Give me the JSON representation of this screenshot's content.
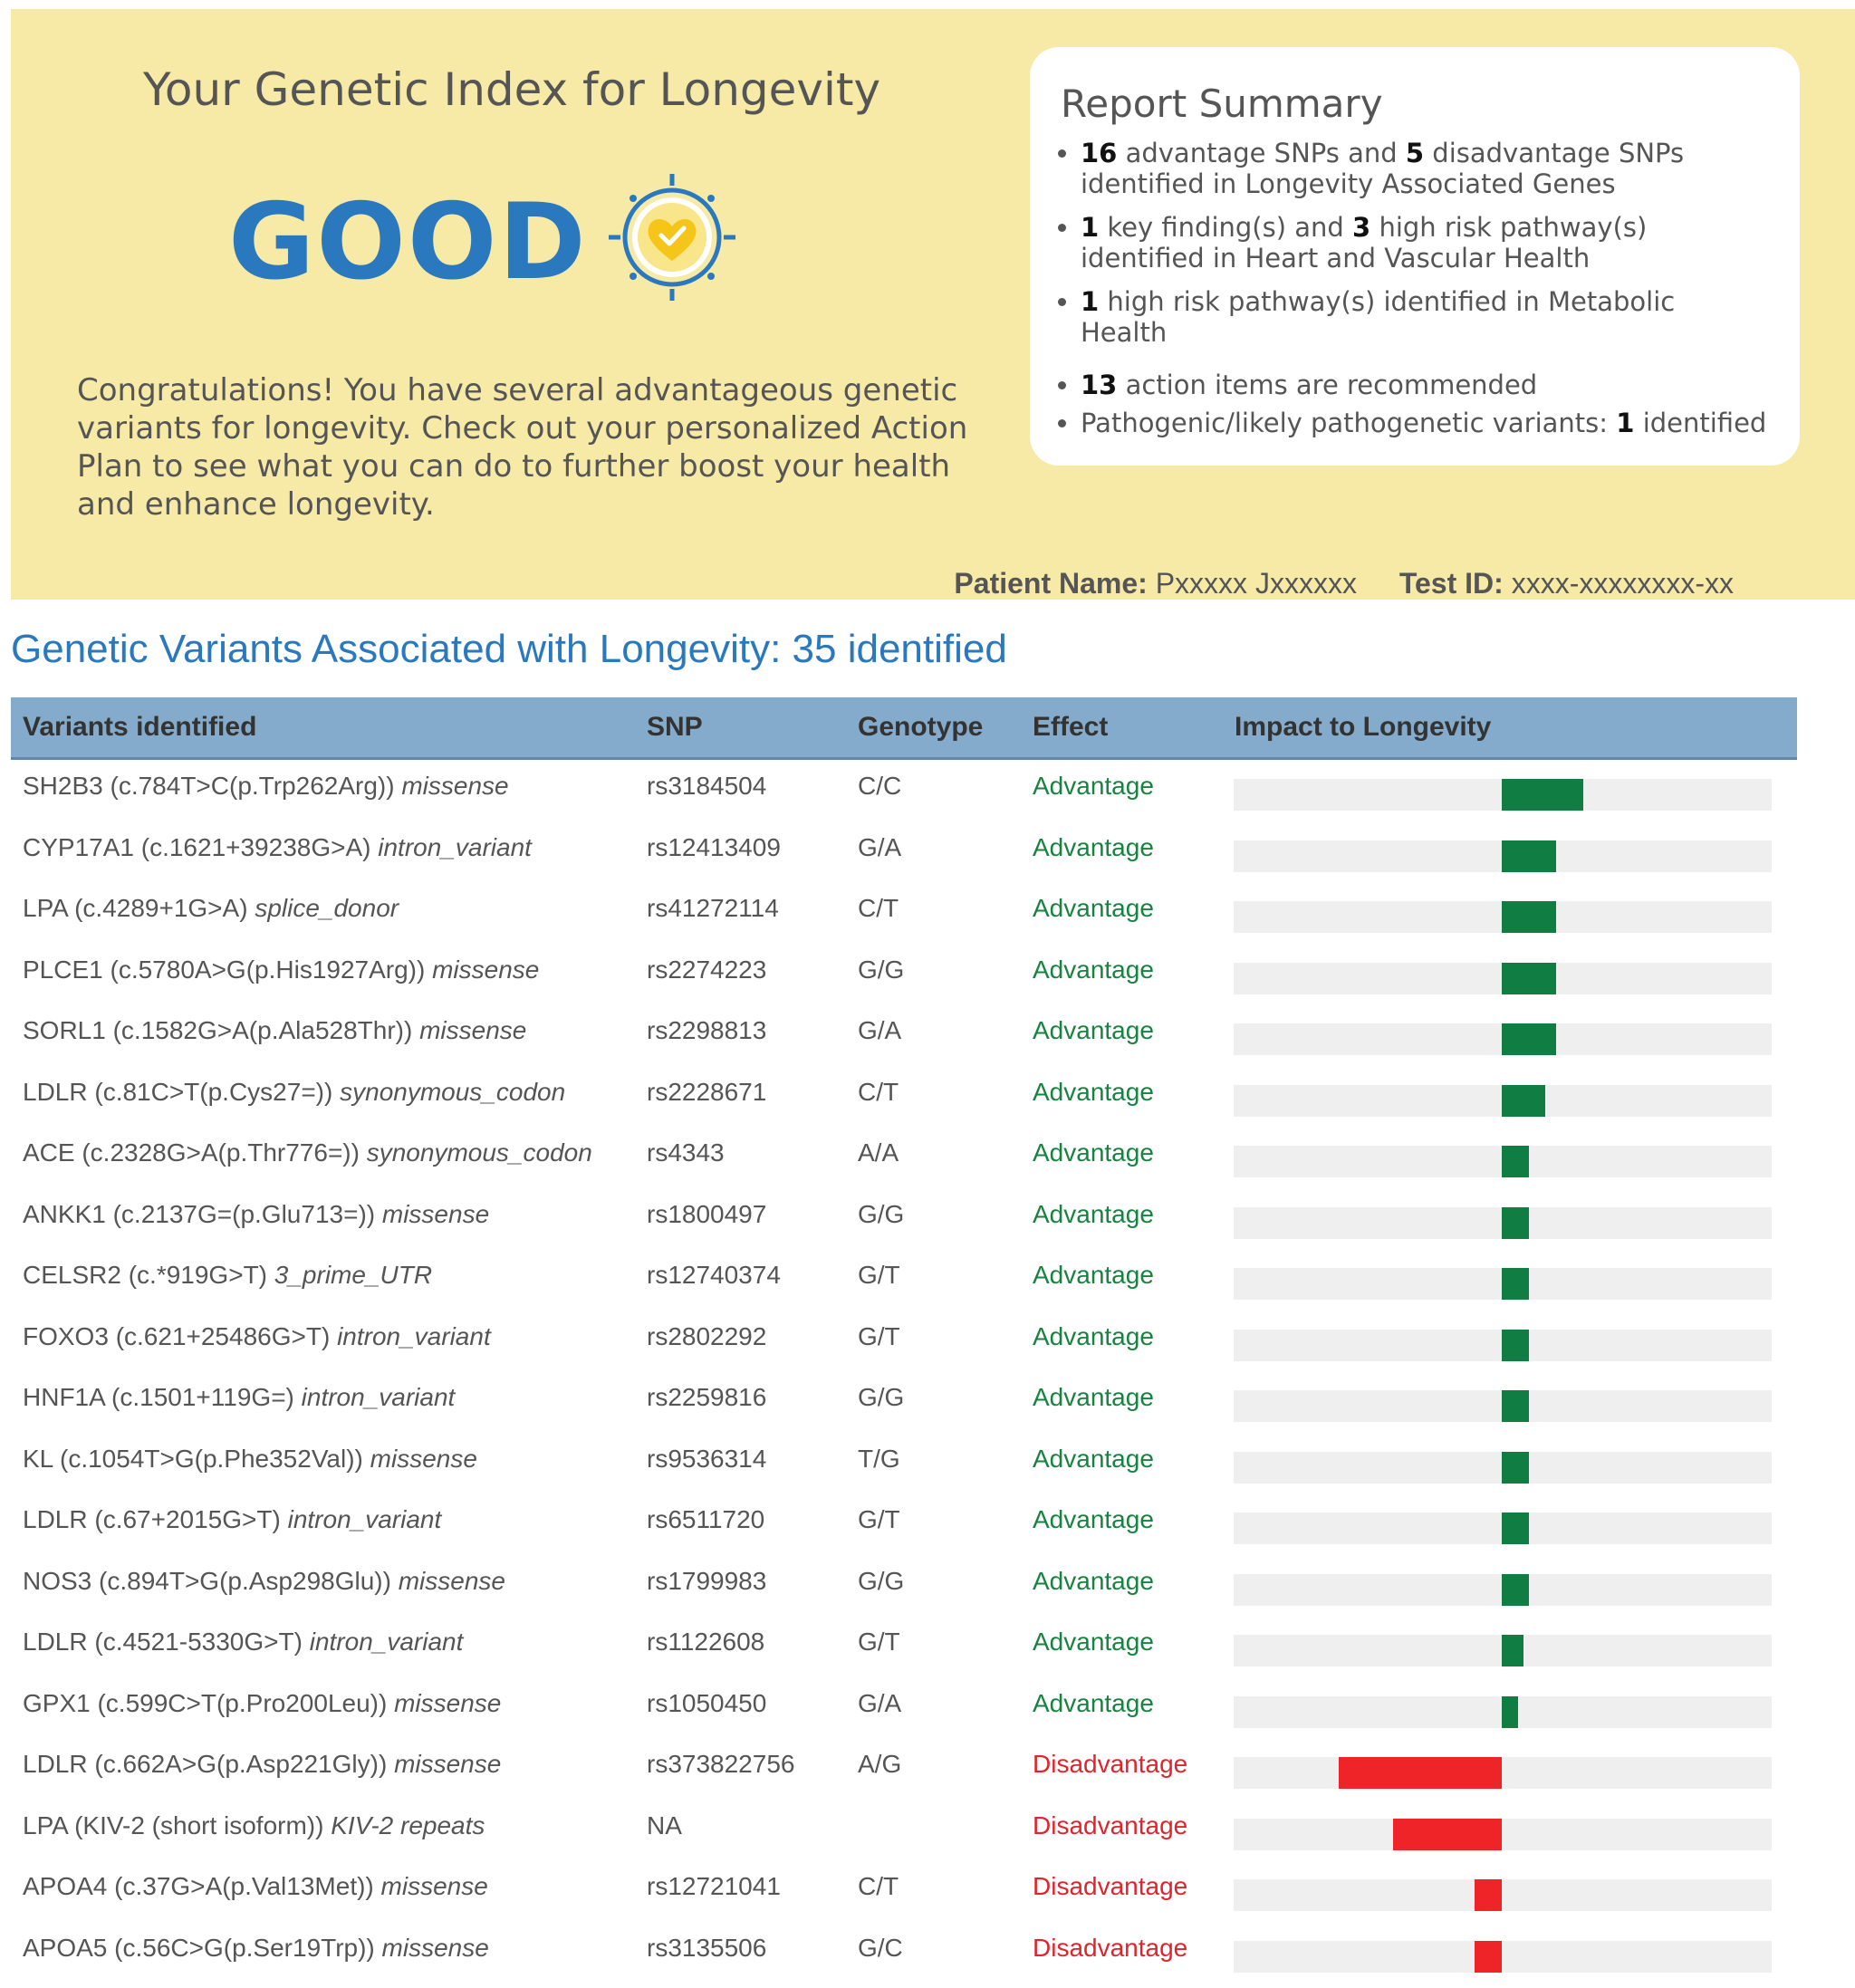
{
  "header": {
    "title": "Your Genetic Index for Longevity",
    "rating": "GOOD",
    "badge_icon": "heart-check-icon",
    "message": "Congratulations! You have several advantageous genetic variants for longevity. Check out your personalized Action Plan to see what you can do to further boost your health and enhance longevity."
  },
  "summary": {
    "title": "Report Summary",
    "items": [
      {
        "count": "16",
        "mid": "advantage SNPs and",
        "count2": "5",
        "text": "disadvantage SNPs identified in Longevity Associated Genes"
      },
      {
        "count": "1",
        "mid": "key finding(s) and",
        "count2": "3",
        "text": "high risk pathway(s) identified in Heart and Vascular Health"
      },
      {
        "count": "1",
        "text": "high risk pathway(s) identified in Metabolic Health"
      },
      {
        "count": "13",
        "text": "action items are recommended"
      },
      {
        "prefix": "Pathogenic/likely pathogenetic variants:",
        "count": "1",
        "text": "identified"
      }
    ]
  },
  "patient": {
    "name_label": "Patient Name:",
    "name_value": "Pxxxxx Jxxxxxx",
    "test_label": "Test ID:",
    "test_value": "xxxx-xxxxxxxx-xx"
  },
  "section_title": "Genetic Variants Associated with Longevity: 35 identified",
  "table": {
    "columns": [
      "Variants identified",
      "SNP",
      "Genotype",
      "Effect",
      "Impact to Longevity"
    ],
    "rows": [
      {
        "gene": "SH2B3 (c.784T>C(p.Trp262Arg))",
        "type": "missense",
        "snp": "rs3184504",
        "genotype": "C/C",
        "effect": "Advantage",
        "impact": 3.0
      },
      {
        "gene": "CYP17A1 (c.1621+39238G>A)",
        "type": "intron_variant",
        "snp": "rs12413409",
        "genotype": "G/A",
        "effect": "Advantage",
        "impact": 2.0
      },
      {
        "gene": "LPA (c.4289+1G>A)",
        "type": "splice_donor",
        "snp": "rs41272114",
        "genotype": "C/T",
        "effect": "Advantage",
        "impact": 2.0
      },
      {
        "gene": "PLCE1 (c.5780A>G(p.His1927Arg))",
        "type": "missense",
        "snp": "rs2274223",
        "genotype": "G/G",
        "effect": "Advantage",
        "impact": 2.0
      },
      {
        "gene": "SORL1 (c.1582G>A(p.Ala528Thr))",
        "type": "missense",
        "snp": "rs2298813",
        "genotype": "G/A",
        "effect": "Advantage",
        "impact": 2.0
      },
      {
        "gene": "LDLR (c.81C>T(p.Cys27=))",
        "type": "synonymous_codon",
        "snp": "rs2228671",
        "genotype": "C/T",
        "effect": "Advantage",
        "impact": 1.6
      },
      {
        "gene": "ACE (c.2328G>A(p.Thr776=))",
        "type": "synonymous_codon",
        "snp": "rs4343",
        "genotype": "A/A",
        "effect": "Advantage",
        "impact": 1.0
      },
      {
        "gene": "ANKK1 (c.2137G=(p.Glu713=))",
        "type": "missense",
        "snp": "rs1800497",
        "genotype": "G/G",
        "effect": "Advantage",
        "impact": 1.0
      },
      {
        "gene": "CELSR2 (c.*919G>T)",
        "type": "3_prime_UTR",
        "snp": "rs12740374",
        "genotype": "G/T",
        "effect": "Advantage",
        "impact": 1.0
      },
      {
        "gene": "FOXO3 (c.621+25486G>T)",
        "type": "intron_variant",
        "snp": "rs2802292",
        "genotype": "G/T",
        "effect": "Advantage",
        "impact": 1.0
      },
      {
        "gene": "HNF1A (c.1501+119G=)",
        "type": "intron_variant",
        "snp": "rs2259816",
        "genotype": "G/G",
        "effect": "Advantage",
        "impact": 1.0
      },
      {
        "gene": "KL (c.1054T>G(p.Phe352Val))",
        "type": "missense",
        "snp": "rs9536314",
        "genotype": "T/G",
        "effect": "Advantage",
        "impact": 1.0
      },
      {
        "gene": "LDLR (c.67+2015G>T)",
        "type": "intron_variant",
        "snp": "rs6511720",
        "genotype": "G/T",
        "effect": "Advantage",
        "impact": 1.0
      },
      {
        "gene": "NOS3 (c.894T>G(p.Asp298Glu))",
        "type": "missense",
        "snp": "rs1799983",
        "genotype": "G/G",
        "effect": "Advantage",
        "impact": 1.0
      },
      {
        "gene": "LDLR (c.4521-5330G>T)",
        "type": "intron_variant",
        "snp": "rs1122608",
        "genotype": "G/T",
        "effect": "Advantage",
        "impact": 0.8
      },
      {
        "gene": "GPX1 (c.599C>T(p.Pro200Leu))",
        "type": "missense",
        "snp": "rs1050450",
        "genotype": "G/A",
        "effect": "Advantage",
        "impact": 0.6
      },
      {
        "gene": "LDLR (c.662A>G(p.Asp221Gly))",
        "type": "missense",
        "snp": "rs373822756",
        "genotype": "A/G",
        "effect": "Disadvantage",
        "impact": -6.0
      },
      {
        "gene": "LPA (KIV-2 (short isoform))",
        "type": "KIV-2 repeats",
        "snp": "NA",
        "genotype": "",
        "effect": "Disadvantage",
        "impact": -4.0
      },
      {
        "gene": "APOA4 (c.37G>A(p.Val13Met))",
        "type": "missense",
        "snp": "rs12721041",
        "genotype": "C/T",
        "effect": "Disadvantage",
        "impact": -1.0
      },
      {
        "gene": "APOA5 (c.56C>G(p.Ser19Trp))",
        "type": "missense",
        "snp": "rs3135506",
        "genotype": "G/C",
        "effect": "Disadvantage",
        "impact": -1.0
      }
    ],
    "impact_scale": {
      "min": -10,
      "max": 10
    },
    "colors": {
      "advantage": "#107d42",
      "disadvantage": "#ee2428",
      "track": "#efefef"
    }
  }
}
